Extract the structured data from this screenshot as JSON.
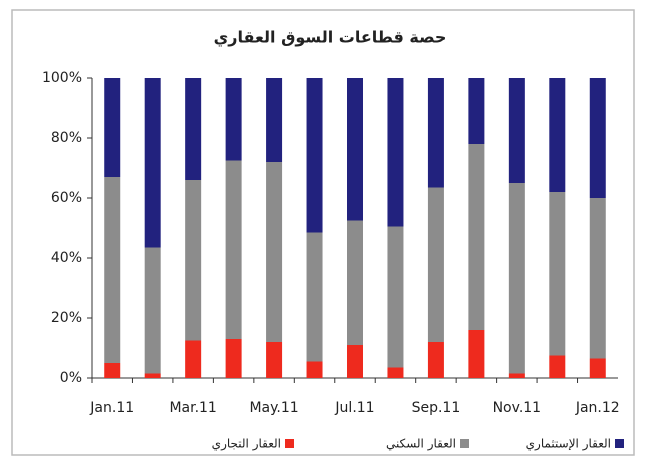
{
  "chart_data": {
    "type": "stacked_bar",
    "title": "حصة قطاعات السوق العقاري",
    "categories": [
      "Jan.11",
      null,
      "Mar.11",
      null,
      "May.11",
      null,
      "Jul.11",
      null,
      "Sep.11",
      null,
      "Nov.11",
      null,
      "Jan.12"
    ],
    "series": [
      {
        "name": "العقار التجاري",
        "color": "#ee2a1e",
        "values": [
          5,
          1.5,
          12.5,
          13,
          12,
          5.5,
          11,
          3.5,
          12,
          16,
          1.5,
          7.5,
          6.5
        ]
      },
      {
        "name": "العقار السكني",
        "color": "#8c8c8c",
        "values": [
          62,
          42,
          53.5,
          59.5,
          60,
          43,
          41.5,
          47,
          51.5,
          62,
          63.5,
          54.5,
          53.5
        ]
      },
      {
        "name": "العقار الإستثماري",
        "color": "#22227e",
        "values": [
          33,
          56.5,
          34,
          27.5,
          28,
          51.5,
          47.5,
          49.5,
          36.5,
          22,
          35,
          38,
          40
        ]
      }
    ],
    "ylim": [
      0,
      100
    ],
    "yticks": [
      {
        "value": 0,
        "label": "0%"
      },
      {
        "value": 20,
        "label": "20%"
      },
      {
        "value": 40,
        "label": "40%"
      },
      {
        "value": 60,
        "label": "60%"
      },
      {
        "value": 80,
        "label": "80%"
      },
      {
        "value": 100,
        "label": "100%"
      }
    ],
    "grid": false,
    "legend": "bottom"
  }
}
